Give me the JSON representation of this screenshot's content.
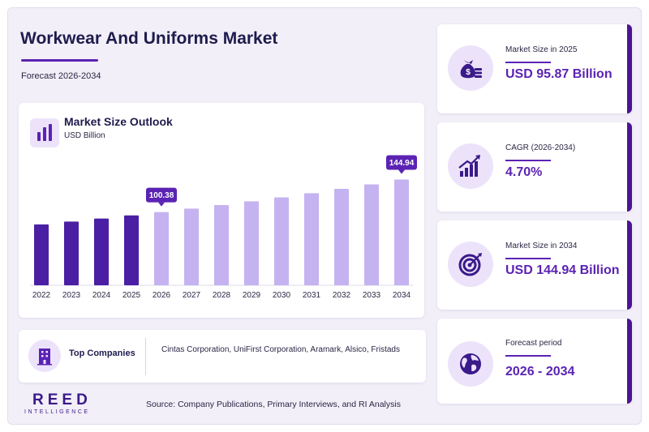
{
  "header": {
    "title": "Workwear And Uniforms Market",
    "subtitle": "Forecast 2026-2034"
  },
  "chart_panel": {
    "title": "Market Size Outlook",
    "unit": "USD Billion",
    "icon": "bar-chart-icon"
  },
  "chart_data": {
    "type": "bar",
    "title": "Market Size Outlook",
    "ylabel": "USD Billion",
    "categories": [
      "2022",
      "2023",
      "2024",
      "2025",
      "2026",
      "2027",
      "2028",
      "2029",
      "2030",
      "2031",
      "2032",
      "2033",
      "2034"
    ],
    "values": [
      83.5,
      87.4,
      91.5,
      95.87,
      100.38,
      105.1,
      110.0,
      115.2,
      120.6,
      126.3,
      132.2,
      138.4,
      144.94
    ],
    "labeled_values": {
      "2026": "100.38",
      "2034": "144.94"
    },
    "ylim": [
      0,
      150
    ],
    "grid": false,
    "colors": {
      "historical": "#4a1fa3",
      "forecast": "#c4b3f0",
      "callout": "#5b23b3"
    },
    "forecast_start": "2026"
  },
  "companies": {
    "label": "Top Companies",
    "list": "Cintas Corporation, UniFirst Corporation, Aramark, Alsico, Fristads",
    "icon": "building-icon"
  },
  "kpis": [
    {
      "label": "Market Size in 2025",
      "value": "USD 95.87 Billion",
      "icon": "money-bag-icon"
    },
    {
      "label": "CAGR (2026-2034)",
      "value": "4.70%",
      "icon": "growth-chart-icon"
    },
    {
      "label": "Market Size in 2034",
      "value": "USD 144.94 Billion",
      "icon": "target-icon"
    },
    {
      "label": "Forecast period",
      "value": "2026 - 2034",
      "icon": "globe-icon"
    }
  ],
  "footer": {
    "logo_main": "REED",
    "logo_sub": "INTELLIGENCE",
    "source": "Source: Company Publications, Primary Interviews, and RI Analysis"
  },
  "theme": {
    "accent": "#5b23b3",
    "dark": "#1e1b4d",
    "panel": "#f2eff8"
  }
}
